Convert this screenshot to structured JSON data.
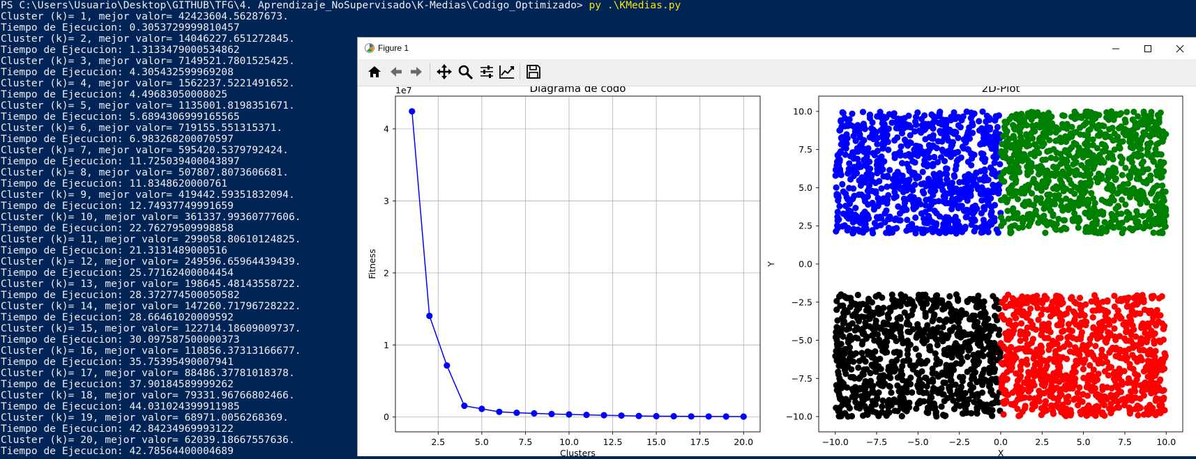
{
  "terminal": {
    "prompt": "PS C:\\Users\\Usuario\\Desktop\\GITHUB\\TFG\\4. Aprendizaje_NoSupervisado\\K-Medias\\Codigo_Optimizado>",
    "command": " py .\\KMedias.py",
    "lines": [
      "Cluster (k)= 1, mejor valor= 42423604.56287673.",
      "Tiempo de Ejecucion: 0.3053729999810457",
      "Cluster (k)= 2, mejor valor= 14046227.651272845.",
      "Tiempo de Ejecucion: 1.3133479000534862",
      "Cluster (k)= 3, mejor valor= 7149521.7801525425.",
      "Tiempo de Ejecucion: 4.305432599969208",
      "Cluster (k)= 4, mejor valor= 1562237.5221491652.",
      "Tiempo de Ejecucion: 4.49683050008025",
      "Cluster (k)= 5, mejor valor= 1135001.8198351671.",
      "Tiempo de Ejecucion: 5.6894306999165565",
      "Cluster (k)= 6, mejor valor= 719155.551315371.",
      "Tiempo de Ejecucion: 6.983268200070597",
      "Cluster (k)= 7, mejor valor= 595420.5379792424.",
      "Tiempo de Ejecucion: 11.725039400043897",
      "Cluster (k)= 8, mejor valor= 507807.8073606681.",
      "Tiempo de Ejecucion: 11.8348620000761",
      "Cluster (k)= 9, mejor valor= 419442.59351832094.",
      "Tiempo de Ejecucion: 12.74937749991659",
      "Cluster (k)= 10, mejor valor= 361337.99360777606.",
      "Tiempo de Ejecucion: 22.76279509998858",
      "Cluster (k)= 11, mejor valor= 299058.80610124825.",
      "Tiempo de Ejecucion: 21.3131489000516",
      "Cluster (k)= 12, mejor valor= 249596.65964439439.",
      "Tiempo de Ejecucion: 25.77162400004454",
      "Cluster (k)= 13, mejor valor= 198645.48143558722.",
      "Tiempo de Ejecucion: 28.372774500050582",
      "Cluster (k)= 14, mejor valor= 147260.71796728222.",
      "Tiempo de Ejecucion: 28.66461020009592",
      "Cluster (k)= 15, mejor valor= 122714.18609009737.",
      "Tiempo de Ejecucion: 30.097587500000373",
      "Cluster (k)= 16, mejor valor= 110856.37313166677.",
      "Tiempo de Ejecucion: 35.75395490007941",
      "Cluster (k)= 17, mejor valor= 88486.37781018378.",
      "Tiempo de Ejecucion: 37.90184589999262",
      "Cluster (k)= 18, mejor valor= 79331.96766802466.",
      "Tiempo de Ejecucion: 44.031024399911985",
      "Cluster (k)= 19, mejor valor= 68971.0056268369.",
      "Tiempo de Ejecucion: 42.84234969993122",
      "Cluster (k)= 20, mejor valor= 62039.18667557636.",
      "Tiempo de Ejecucion: 42.78564400004689"
    ]
  },
  "window": {
    "title": "Figure 1",
    "toolbar": [
      "home-icon",
      "back-arrow-icon",
      "forward-arrow-icon",
      "pan-icon",
      "zoom-icon",
      "subplots-icon",
      "customize-icon",
      "save-icon"
    ]
  },
  "colors": {
    "terminal_bg": "#012456",
    "terminal_text": "#eeedf0",
    "terminal_command": "#f7e600",
    "elbow_line": "#0000ff",
    "cluster_blue": "#0000ff",
    "cluster_green": "#008000",
    "cluster_black": "#000000",
    "cluster_red": "#ff0000"
  },
  "chart_data": [
    {
      "type": "line",
      "title": "Diagrama de codo",
      "xlabel": "Clusters",
      "ylabel": "Fitness",
      "offset_text": "1e7",
      "x": [
        1,
        2,
        3,
        4,
        5,
        6,
        7,
        8,
        9,
        10,
        11,
        12,
        13,
        14,
        15,
        16,
        17,
        18,
        19,
        20
      ],
      "y": [
        42423604.56,
        14046227.65,
        7149521.78,
        1562237.52,
        1135001.82,
        719155.55,
        595420.54,
        507807.81,
        419442.59,
        361337.99,
        299058.81,
        249596.66,
        198645.48,
        147260.72,
        122714.19,
        110856.37,
        88486.38,
        79331.97,
        68971.01,
        62039.19
      ],
      "xlim": [
        0.05,
        20.95
      ],
      "ylim": [
        -2056000,
        44542000
      ],
      "xticks": [
        2.5,
        5.0,
        7.5,
        10.0,
        12.5,
        15.0,
        17.5,
        20.0
      ],
      "xtick_labels": [
        "2.5",
        "5.0",
        "7.5",
        "10.0",
        "12.5",
        "15.0",
        "17.5",
        "20.0"
      ],
      "yticks": [
        0,
        10000000,
        20000000,
        30000000,
        40000000
      ],
      "ytick_labels": [
        "0",
        "1",
        "2",
        "3",
        "4"
      ],
      "grid": true
    },
    {
      "type": "scatter",
      "title": "2D-Plot",
      "xlabel": "X",
      "ylabel": "Y",
      "xlim": [
        -11,
        11
      ],
      "ylim": [
        -11,
        11
      ],
      "xticks": [
        -10,
        -7.5,
        -5,
        -2.5,
        0,
        2.5,
        5,
        7.5,
        10
      ],
      "xtick_labels": [
        "−10.0",
        "−7.5",
        "−5.0",
        "−2.5",
        "0.0",
        "2.5",
        "5.0",
        "7.5",
        "10.0"
      ],
      "yticks": [
        -10,
        -7.5,
        -5,
        -2.5,
        0,
        2.5,
        5,
        7.5,
        10
      ],
      "ytick_labels": [
        "−10.0",
        "−7.5",
        "−5.0",
        "−2.5",
        "0.0",
        "2.5",
        "5.0",
        "7.5",
        "10.0"
      ],
      "grid": false,
      "series": [
        {
          "color": "#0000ff",
          "x_range": [
            -10,
            0
          ],
          "y_range": [
            2,
            10
          ]
        },
        {
          "color": "#008000",
          "x_range": [
            0,
            10
          ],
          "y_range": [
            2,
            10
          ]
        },
        {
          "color": "#000000",
          "x_range": [
            -10,
            0
          ],
          "y_range": [
            -10,
            -2
          ]
        },
        {
          "color": "#ff0000",
          "x_range": [
            0,
            10
          ],
          "y_range": [
            -10,
            -2
          ]
        }
      ]
    }
  ]
}
